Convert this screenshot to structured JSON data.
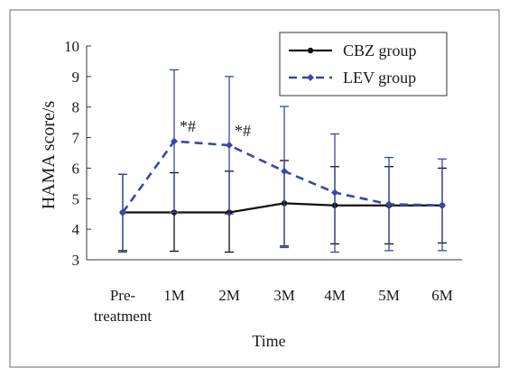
{
  "chart_data": {
    "type": "line",
    "categories": [
      "Pre-\ntreatment",
      "1M",
      "2M",
      "3M",
      "4M",
      "5M",
      "6M"
    ],
    "xlabel": "Time",
    "ylabel": "HAMA score/s",
    "ylim": [
      3,
      10
    ],
    "yticks": [
      3,
      4,
      5,
      6,
      7,
      8,
      9,
      10
    ],
    "grid": false,
    "legend_position": "top-right",
    "series": [
      {
        "name": "CBZ group",
        "color": "#111111",
        "line_style": "solid",
        "marker": "circle",
        "values": [
          4.55,
          4.55,
          4.55,
          4.85,
          4.78,
          4.78,
          4.78
        ],
        "error_upper": [
          5.8,
          5.85,
          5.9,
          6.25,
          6.05,
          6.05,
          6.0
        ],
        "error_lower": [
          3.3,
          3.28,
          3.25,
          3.45,
          3.52,
          3.52,
          3.55
        ]
      },
      {
        "name": "LEV group",
        "color": "#3a48a6",
        "line_style": "dashed",
        "marker": "diamond",
        "values": [
          4.55,
          6.88,
          6.75,
          5.9,
          5.2,
          4.82,
          4.78
        ],
        "error_upper": [
          5.8,
          9.22,
          9.0,
          8.02,
          7.12,
          6.35,
          6.3
        ],
        "error_lower": [
          3.25,
          4.55,
          4.5,
          3.4,
          3.25,
          3.3,
          3.3
        ]
      }
    ],
    "annotations": [
      {
        "category": "1M",
        "text": "*#",
        "y": 7.2
      },
      {
        "category": "2M",
        "text": "*#",
        "y": 7.05
      }
    ]
  }
}
